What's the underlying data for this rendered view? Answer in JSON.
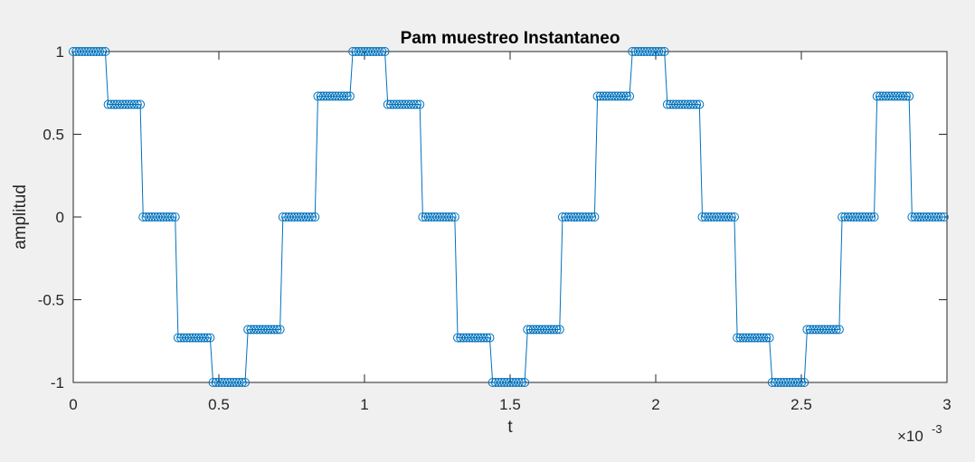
{
  "chart_data": {
    "type": "line",
    "title": "Pam muestreo Instantaneo",
    "xlabel": "t",
    "ylabel": "amplitud",
    "xlim": [
      0,
      0.003
    ],
    "ylim": [
      -1,
      1
    ],
    "x_exponent_label": "×10",
    "x_exponent_power": "-3",
    "xticks": [
      {
        "value": 0,
        "label": "0"
      },
      {
        "value": 0.0005,
        "label": "0.5"
      },
      {
        "value": 0.001,
        "label": "1"
      },
      {
        "value": 0.0015,
        "label": "1.5"
      },
      {
        "value": 0.002,
        "label": "2"
      },
      {
        "value": 0.0025,
        "label": "2.5"
      },
      {
        "value": 0.003,
        "label": "3"
      }
    ],
    "yticks": [
      {
        "value": 1,
        "label": "1"
      },
      {
        "value": 0.5,
        "label": "0.5"
      },
      {
        "value": 0,
        "label": "0"
      },
      {
        "value": -0.5,
        "label": "-0.5"
      },
      {
        "value": -1,
        "label": "-1"
      }
    ],
    "grid": false,
    "marker": "circle",
    "color": "#0072bd",
    "sampling": {
      "x_start": 0,
      "x_step": 1e-05,
      "samples_per_segment": 12
    },
    "series": [
      {
        "segment_values": [
          1,
          0.68,
          0,
          -0.73,
          -1,
          -0.68,
          0,
          0.73,
          1,
          0.68,
          0,
          -0.73,
          -1,
          -0.68,
          0,
          0.73,
          1,
          0.68,
          0,
          -0.73,
          -1,
          -0.68,
          0,
          0.73,
          0
        ]
      }
    ]
  }
}
